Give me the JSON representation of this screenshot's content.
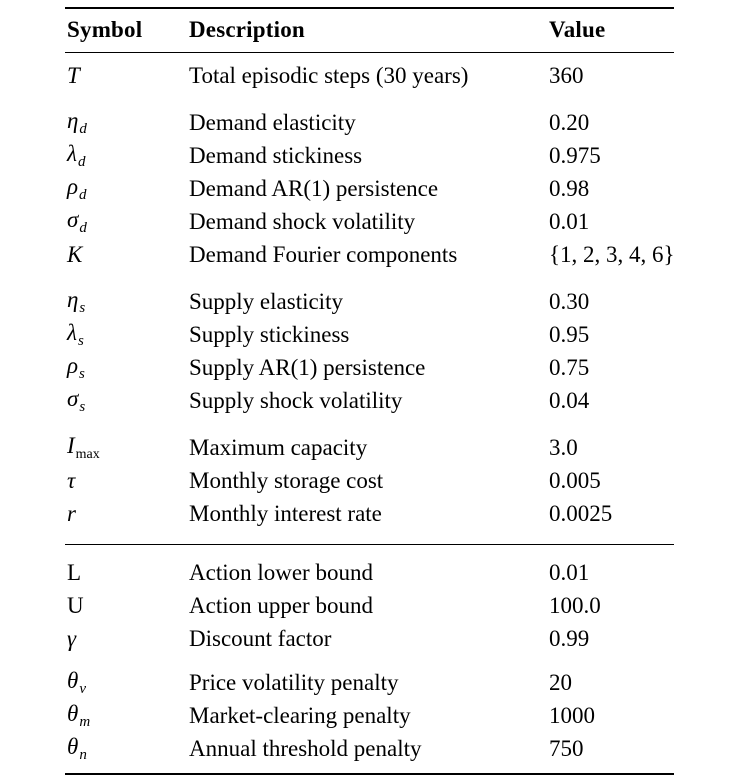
{
  "page": {
    "background_color": "#ffffff",
    "text_color": "#000000",
    "rule_color": "#000000"
  },
  "table": {
    "columns": [
      "Symbol",
      "Description",
      "Value"
    ],
    "sections": [
      {
        "groups": [
          {
            "rows": [
              {
                "symbol": {
                  "base": "T",
                  "sub": "",
                  "base_style": "italic",
                  "sub_style": "italic"
                },
                "description": "Total episodic steps (30 years)",
                "value": "360"
              }
            ]
          },
          {
            "rows": [
              {
                "symbol": {
                  "base": "η",
                  "sub": "d",
                  "base_style": "italic",
                  "sub_style": "italic"
                },
                "description": "Demand elasticity",
                "value": "0.20"
              },
              {
                "symbol": {
                  "base": "λ",
                  "sub": "d",
                  "base_style": "italic",
                  "sub_style": "italic"
                },
                "description": "Demand stickiness",
                "value": "0.975"
              },
              {
                "symbol": {
                  "base": "ρ",
                  "sub": "d",
                  "base_style": "italic",
                  "sub_style": "italic"
                },
                "description": "Demand AR(1) persistence",
                "value": "0.98"
              },
              {
                "symbol": {
                  "base": "σ",
                  "sub": "d",
                  "base_style": "italic",
                  "sub_style": "italic"
                },
                "description": "Demand shock volatility",
                "value": "0.01"
              },
              {
                "symbol": {
                  "base": "K",
                  "sub": "",
                  "base_style": "script",
                  "sub_style": "italic"
                },
                "description": "Demand Fourier components",
                "value": "{1, 2, 3, 4, 6}"
              }
            ]
          },
          {
            "rows": [
              {
                "symbol": {
                  "base": "η",
                  "sub": "s",
                  "base_style": "italic",
                  "sub_style": "italic"
                },
                "description": "Supply elasticity",
                "value": "0.30"
              },
              {
                "symbol": {
                  "base": "λ",
                  "sub": "s",
                  "base_style": "italic",
                  "sub_style": "italic"
                },
                "description": "Supply stickiness",
                "value": "0.95"
              },
              {
                "symbol": {
                  "base": "ρ",
                  "sub": "s",
                  "base_style": "italic",
                  "sub_style": "italic"
                },
                "description": "Supply AR(1) persistence",
                "value": "0.75"
              },
              {
                "symbol": {
                  "base": "σ",
                  "sub": "s",
                  "base_style": "italic",
                  "sub_style": "italic"
                },
                "description": "Supply shock volatility",
                "value": "0.04"
              }
            ]
          },
          {
            "rows": [
              {
                "symbol": {
                  "base": "I",
                  "sub": "max",
                  "base_style": "italic",
                  "sub_style": "roman"
                },
                "description": "Maximum capacity",
                "value": "3.0"
              },
              {
                "symbol": {
                  "base": "τ",
                  "sub": "",
                  "base_style": "italic",
                  "sub_style": "italic"
                },
                "description": "Monthly storage cost",
                "value": "0.005"
              },
              {
                "symbol": {
                  "base": "r",
                  "sub": "",
                  "base_style": "italic",
                  "sub_style": "italic"
                },
                "description": "Monthly interest rate",
                "value": "0.0025"
              }
            ]
          }
        ]
      },
      {
        "groups": [
          {
            "rows": [
              {
                "symbol": {
                  "base": "L",
                  "sub": "",
                  "base_style": "roman",
                  "sub_style": "italic"
                },
                "description": "Action lower bound",
                "value": "0.01"
              },
              {
                "symbol": {
                  "base": "U",
                  "sub": "",
                  "base_style": "roman",
                  "sub_style": "italic"
                },
                "description": "Action upper bound",
                "value": "100.0"
              },
              {
                "symbol": {
                  "base": "γ",
                  "sub": "",
                  "base_style": "italic",
                  "sub_style": "italic"
                },
                "description": "Discount factor",
                "value": "0.99"
              }
            ]
          },
          {
            "rows": [
              {
                "symbol": {
                  "base": "θ",
                  "sub": "v",
                  "base_style": "italic",
                  "sub_style": "italic"
                },
                "description": "Price volatility penalty",
                "value": "20"
              },
              {
                "symbol": {
                  "base": "θ",
                  "sub": "m",
                  "base_style": "italic",
                  "sub_style": "italic"
                },
                "description": "Market-clearing penalty",
                "value": "1000"
              },
              {
                "symbol": {
                  "base": "θ",
                  "sub": "n",
                  "base_style": "italic",
                  "sub_style": "italic"
                },
                "description": "Annual threshold penalty",
                "value": "750"
              }
            ]
          }
        ]
      }
    ]
  }
}
